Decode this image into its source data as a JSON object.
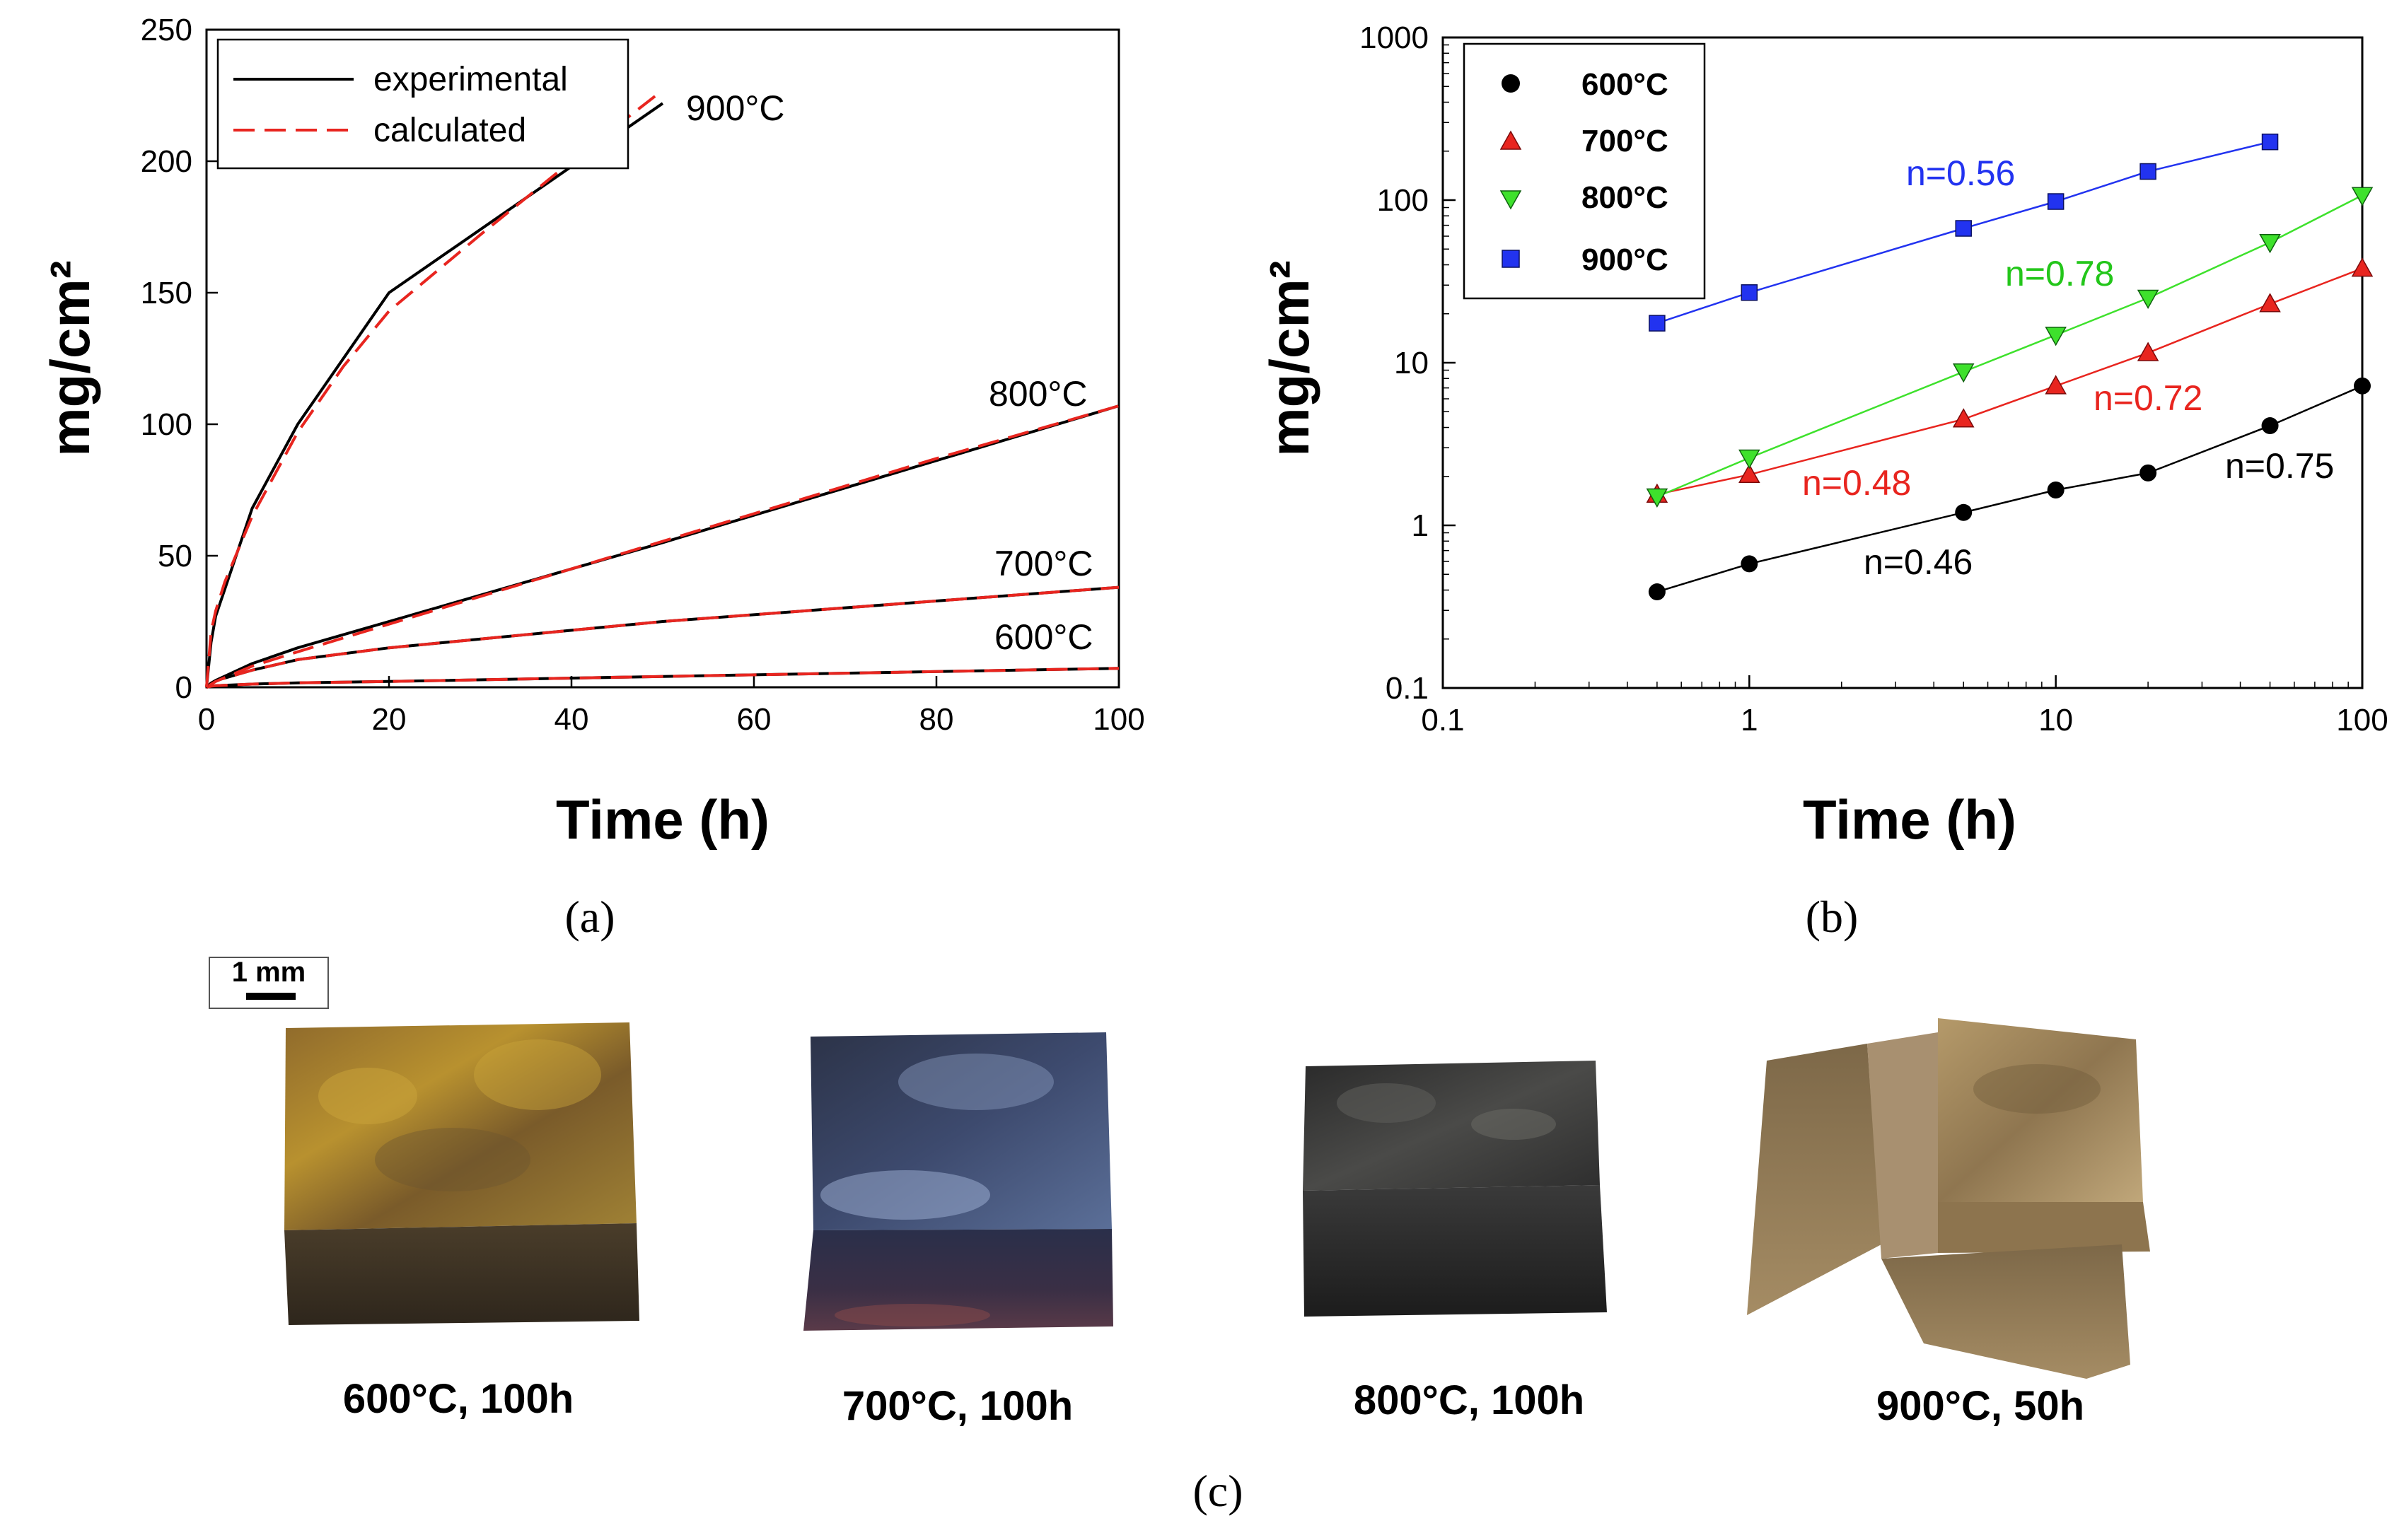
{
  "chart_data": [
    {
      "type": "line",
      "panel": "(a)",
      "xlabel": "Time (h)",
      "ylabel": "mg/cm²",
      "xlim": [
        0,
        100
      ],
      "ylim": [
        0,
        250
      ],
      "xticks": [
        0,
        20,
        40,
        60,
        80,
        100
      ],
      "yticks": [
        0,
        50,
        100,
        150,
        200,
        250
      ],
      "legend": {
        "position": "top-left",
        "entries": [
          "experimental",
          "calculated"
        ]
      },
      "series": [
        {
          "name": "600°C experimental",
          "label": "600°C",
          "style": "solid",
          "color": "#000000",
          "x": [
            0,
            0.5,
            1,
            5,
            10,
            20,
            50,
            100
          ],
          "y": [
            0,
            0.4,
            0.6,
            1.2,
            1.7,
            2.2,
            4.1,
            7.2
          ]
        },
        {
          "name": "600°C calculated",
          "style": "dashed",
          "color": "#e8251f",
          "x": [
            0,
            0.5,
            1,
            5,
            10,
            20,
            50,
            100
          ],
          "y": [
            0,
            0.4,
            0.6,
            1.2,
            1.7,
            2.2,
            4.1,
            7.2
          ]
        },
        {
          "name": "700°C experimental",
          "label": "700°C",
          "style": "solid",
          "color": "#000000",
          "x": [
            0,
            0.5,
            1,
            5,
            10,
            20,
            50,
            100
          ],
          "y": [
            0,
            1.6,
            2.5,
            6.5,
            10.5,
            15,
            25,
            38
          ]
        },
        {
          "name": "700°C calculated",
          "style": "dashed",
          "color": "#e8251f",
          "x": [
            0,
            0.5,
            1,
            5,
            10,
            20,
            50,
            100
          ],
          "y": [
            0,
            1.6,
            2.5,
            6.5,
            10.5,
            15,
            25,
            38
          ]
        },
        {
          "name": "800°C experimental",
          "label": "800°C",
          "style": "solid",
          "color": "#000000",
          "x": [
            0,
            0.5,
            1,
            5,
            10,
            20,
            50,
            100
          ],
          "y": [
            0,
            1.5,
            2.6,
            9,
            15,
            25,
            55,
            107
          ]
        },
        {
          "name": "800°C calculated",
          "style": "dashed",
          "color": "#e8251f",
          "x": [
            0,
            1,
            5,
            10,
            20,
            40,
            60,
            80,
            100
          ],
          "y": [
            0,
            2.2,
            8.0,
            13.5,
            24.0,
            45.0,
            66.0,
            87.0,
            107
          ]
        },
        {
          "name": "900°C experimental",
          "label": "900°C",
          "style": "solid",
          "color": "#000000",
          "x": [
            0,
            0.5,
            1,
            5,
            10,
            20,
            50
          ],
          "y": [
            0,
            17,
            27,
            68,
            100,
            150,
            222
          ]
        },
        {
          "name": "900°C calculated",
          "style": "dashed",
          "color": "#e8251f",
          "x": [
            0,
            0.5,
            1,
            2,
            5,
            10,
            15,
            20,
            30,
            40,
            50
          ],
          "y": [
            0,
            21,
            29,
            40,
            65,
            97,
            122,
            143,
            172,
            200,
            227
          ]
        }
      ]
    },
    {
      "type": "scatter",
      "panel": "(b)",
      "xscale": "log",
      "yscale": "log",
      "xlabel": "Time (h)",
      "ylabel": "mg/cm²",
      "xlim": [
        0.1,
        100
      ],
      "ylim": [
        0.1,
        1000
      ],
      "xticks": [
        "0.1",
        "1",
        "10",
        "100"
      ],
      "yticks": [
        "0.1",
        "1",
        "10",
        "100",
        "1000"
      ],
      "legend": {
        "position": "top-left"
      },
      "series": [
        {
          "name": "600°C",
          "marker": "circle",
          "color": "#000000",
          "x": [
            0.5,
            1,
            5,
            10,
            20,
            50,
            100
          ],
          "y": [
            0.39,
            0.58,
            1.2,
            1.65,
            2.1,
            4.1,
            7.2
          ]
        },
        {
          "name": "700°C",
          "marker": "triangle-up",
          "color": "#e8251f",
          "x": [
            0.5,
            1,
            5,
            10,
            20,
            50,
            100
          ],
          "y": [
            1.55,
            2.05,
            4.5,
            7.2,
            11.5,
            23,
            38
          ]
        },
        {
          "name": "800°C",
          "marker": "triangle-down",
          "color": "#3ee12c",
          "x": [
            0.5,
            1,
            5,
            10,
            20,
            50,
            100
          ],
          "y": [
            1.5,
            2.6,
            8.8,
            14.8,
            25,
            55,
            107
          ]
        },
        {
          "name": "900°C",
          "marker": "square",
          "color": "#2233f0",
          "x": [
            0.5,
            1,
            5,
            10,
            20,
            50
          ],
          "y": [
            17.5,
            27,
            67,
            98,
            150,
            228
          ]
        }
      ],
      "annotations": [
        {
          "text": "n=0.56",
          "color": "#2233f0"
        },
        {
          "text": "n=0.78",
          "color": "#23c61a"
        },
        {
          "text": "n=0.72",
          "color": "#e8251f"
        },
        {
          "text": "n=0.48",
          "color": "#e8251f"
        },
        {
          "text": "n=0.75",
          "color": "#000000"
        },
        {
          "text": "n=0.46",
          "color": "#000000"
        }
      ]
    }
  ],
  "captions": {
    "a": "(a)",
    "b": "(b)",
    "c": "(c)"
  },
  "scale_bar": {
    "label": "1 mm"
  },
  "samples": [
    {
      "label": "600°C, 100h"
    },
    {
      "label": "700°C, 100h"
    },
    {
      "label": "800°C, 100h"
    },
    {
      "label": "900°C, 50h"
    }
  ],
  "palette": {
    "black": "#000000",
    "red": "#e8251f",
    "green": "#3ee12c",
    "blue": "#2233f0"
  }
}
